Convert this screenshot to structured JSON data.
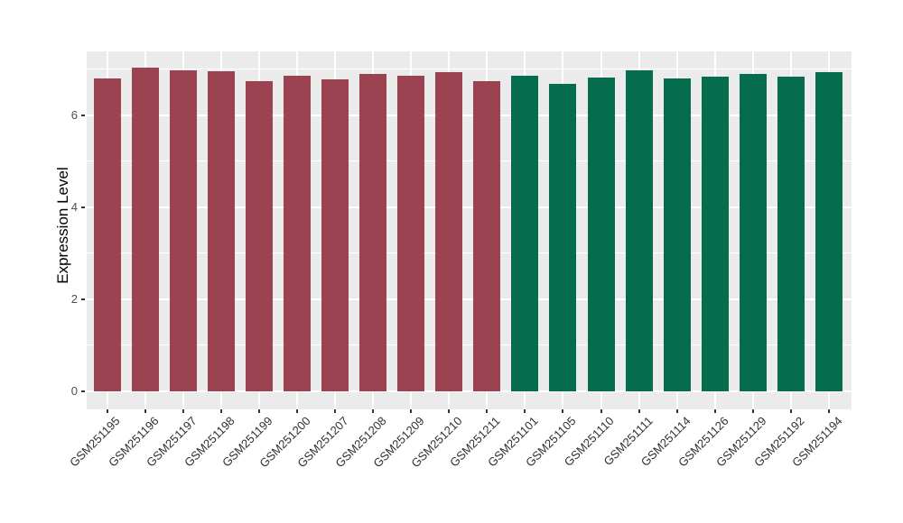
{
  "chart_data": {
    "type": "bar",
    "title": "",
    "xlabel": "",
    "ylabel": "Expression Level",
    "categories": [
      "GSM251195",
      "GSM251196",
      "GSM251197",
      "GSM251198",
      "GSM251199",
      "GSM251200",
      "GSM251207",
      "GSM251208",
      "GSM251209",
      "GSM251210",
      "GSM251211",
      "GSM251101",
      "GSM251105",
      "GSM251110",
      "GSM251111",
      "GSM251114",
      "GSM251126",
      "GSM251129",
      "GSM251192",
      "GSM251194"
    ],
    "values": [
      6.81,
      7.04,
      6.97,
      6.95,
      6.75,
      6.86,
      6.78,
      6.9,
      6.86,
      6.93,
      6.75,
      6.87,
      6.69,
      6.83,
      6.98,
      6.81,
      6.85,
      6.9,
      6.85,
      6.93
    ],
    "bar_groups": [
      0,
      0,
      0,
      0,
      0,
      0,
      0,
      0,
      0,
      0,
      0,
      1,
      1,
      1,
      1,
      1,
      1,
      1,
      1,
      1
    ],
    "group_colors": [
      "#9C4351",
      "#056C4D"
    ],
    "yticks": [
      0,
      2,
      4,
      6
    ],
    "minor_yticks": [
      1,
      3,
      5,
      7
    ],
    "ylim": [
      -0.4,
      7.39
    ],
    "panel_bg": "#EBEBEB",
    "grid_color": "#FFFFFF",
    "background": "#FFFFFF",
    "legend": "none",
    "x_tick_rotation_deg": 45
  }
}
